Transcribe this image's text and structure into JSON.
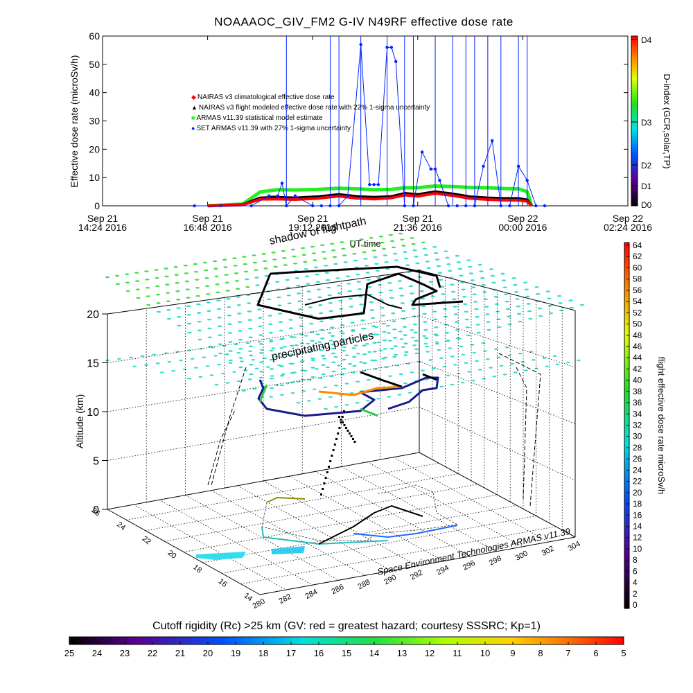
{
  "title": "NOAAAOC_GIV_FM2 G-IV    N49RF  effective dose rate",
  "top_panel": {
    "ylabel": "Effective dose rate (microSv/h)",
    "xlabel": "UT time",
    "yticks": [
      "0",
      "10",
      "20",
      "30",
      "40",
      "50",
      "60"
    ],
    "xticks": [
      {
        "l1": "Sep 21",
        "l2": "14:24 2016"
      },
      {
        "l1": "Sep 21",
        "l2": "16:48 2016"
      },
      {
        "l1": "Sep 21",
        "l2": "19:12 2016"
      },
      {
        "l1": "Sep 21",
        "l2": "21:36 2016"
      },
      {
        "l1": "Sep 22",
        "l2": "00:00 2016"
      },
      {
        "l1": "Sep 22",
        "l2": "02:24 2016"
      }
    ],
    "legend": [
      {
        "symbol": "◆",
        "color": "#ff0000",
        "label": "NAIRAS v3 climatological effective dose rate"
      },
      {
        "symbol": "▲",
        "color": "#000000",
        "label": "NAIRAS v3 flight modeled effective dose rate with 22% 1-sigma uncertainty"
      },
      {
        "symbol": "■",
        "color": "#22ee22",
        "label": "ARMAS v11.39 statistical model estimate"
      },
      {
        "symbol": "●",
        "color": "#0022ff",
        "label": "SET ARMAS v11.39 with 27% 1-sigma uncertainty"
      }
    ],
    "dindex": {
      "title": "D-index (GCR,solar,TP)",
      "ticks": [
        "D4",
        "D3",
        "D2",
        "D1",
        "D0"
      ]
    }
  },
  "chart_data": [
    {
      "type": "line",
      "title": "NOAAAOC_GIV_FM2 G-IV    N49RF  effective dose rate",
      "xlabel": "UT time",
      "ylabel": "Effective dose rate (microSv/h)",
      "x_unit": "hours UT from Sep 21 2016 00:00",
      "xlim": [
        14.4,
        26.4
      ],
      "ylim": [
        0,
        60
      ],
      "series": [
        {
          "name": "NAIRAS v3 climatological effective dose rate",
          "color": "#ff0000",
          "x": [
            16.8,
            17.6,
            18.0,
            18.4,
            18.8,
            19.3,
            19.8,
            20.2,
            20.6,
            21.0,
            21.3,
            21.6,
            22.0,
            22.4,
            22.8,
            23.2,
            23.6,
            23.9,
            24.1,
            24.2
          ],
          "y": [
            0,
            0.3,
            2.3,
            2.4,
            2.2,
            2.6,
            3.4,
            2.7,
            2.4,
            2.8,
            3.8,
            3.4,
            4.4,
            3.6,
            2.6,
            2.2,
            2.0,
            2.0,
            1.6,
            0
          ]
        },
        {
          "name": "NAIRAS v3 flight modeled effective dose rate with 22% 1-sigma uncertainty",
          "color": "#000000",
          "x": [
            16.8,
            17.6,
            18.0,
            18.4,
            18.8,
            19.3,
            19.8,
            20.2,
            20.6,
            21.0,
            21.3,
            21.6,
            22.0,
            22.4,
            22.8,
            23.2,
            23.6,
            23.9,
            24.1,
            24.2
          ],
          "y": [
            0,
            0.4,
            2.8,
            3.0,
            2.8,
            3.2,
            4.0,
            3.3,
            3.0,
            3.3,
            4.4,
            4.0,
            5.0,
            4.2,
            3.2,
            2.8,
            2.6,
            2.6,
            2.1,
            0
          ]
        },
        {
          "name": "ARMAS v11.39 statistical model estimate",
          "color": "#22ee22",
          "x": [
            16.8,
            17.6,
            18.0,
            18.4,
            18.8,
            19.3,
            19.8,
            20.2,
            20.6,
            21.0,
            21.3,
            21.6,
            22.0,
            22.4,
            22.8,
            23.2,
            23.6,
            23.9,
            24.1,
            24.2
          ],
          "y": [
            0,
            0.6,
            4.9,
            5.7,
            5.6,
            5.8,
            6.2,
            6.0,
            5.7,
            5.8,
            6.4,
            6.4,
            7.0,
            6.8,
            6.5,
            6.4,
            6.1,
            6.0,
            5.0,
            0
          ]
        },
        {
          "name": "SET ARMAS v11.39 with 27% 1-sigma uncertainty",
          "color": "#0022ff",
          "x": [
            16.5,
            17.1,
            17.8,
            18.2,
            18.4,
            18.5,
            18.6,
            18.8,
            19.2,
            19.4,
            19.6,
            19.8,
            20.0,
            20.3,
            20.5,
            20.6,
            20.7,
            20.9,
            21.0,
            21.1,
            21.3,
            21.5,
            21.7,
            21.9,
            22.0,
            22.1,
            22.3,
            22.5,
            22.7,
            22.9,
            23.1,
            23.3,
            23.5,
            23.7,
            23.9,
            24.1,
            24.3,
            24.5
          ],
          "y": [
            0,
            0,
            0,
            3.5,
            3.5,
            8,
            0,
            3.5,
            0,
            0,
            0,
            0,
            3.5,
            57,
            7.5,
            7.5,
            7.5,
            56,
            56,
            51,
            0,
            0,
            19,
            13,
            13,
            9,
            0,
            0,
            0,
            0,
            14,
            23,
            0,
            0,
            14,
            9,
            0,
            0
          ]
        }
      ]
    },
    {
      "type": "scatter",
      "title": "precipitating particles",
      "zlabel": "Altitude (km)",
      "zlim": [
        0,
        20
      ],
      "zticks": [
        "0",
        "5",
        "10",
        "15",
        "20"
      ],
      "lon_ticks": [
        "280",
        "282",
        "284",
        "286",
        "288",
        "290",
        "292",
        "294",
        "296",
        "298",
        "300",
        "302",
        "304"
      ],
      "lat_ticks": [
        "14",
        "16",
        "18",
        "20",
        "22",
        "24",
        "26"
      ],
      "dose_colorbar": {
        "label": "flight effective dose rate microSv/h",
        "ticks": [
          "0",
          "2",
          "4",
          "6",
          "8",
          "10",
          "12",
          "14",
          "16",
          "18",
          "20",
          "22",
          "24",
          "26",
          "28",
          "30",
          "32",
          "34",
          "36",
          "38",
          "40",
          "42",
          "44",
          "46",
          "48",
          "50",
          "52",
          "54",
          "56",
          "58",
          "60",
          "62",
          "64"
        ]
      },
      "cutoff_colorbar": {
        "label": "Cutoff rigidity (Rc) >25 km (GV: red = greatest hazard; courtesy SSSRC; Kp=1)",
        "ticks": [
          "25",
          "24",
          "23",
          "22",
          "21",
          "20",
          "19",
          "18",
          "17",
          "16",
          "15",
          "14",
          "13",
          "12",
          "11",
          "10",
          "9",
          "8",
          "7",
          "6",
          "5"
        ]
      }
    }
  ],
  "mid_labels": {
    "shadow": "shadow of flightpath",
    "precip": "precipitating particles"
  },
  "cube": {
    "zlabel": "Altitude (km)"
  },
  "credit": "Space Environment Technologies ARMAS v11.39",
  "rc_caption": "Cutoff rigidity (Rc) >25 km (GV: red = greatest hazard; courtesy SSSRC; Kp=1)"
}
